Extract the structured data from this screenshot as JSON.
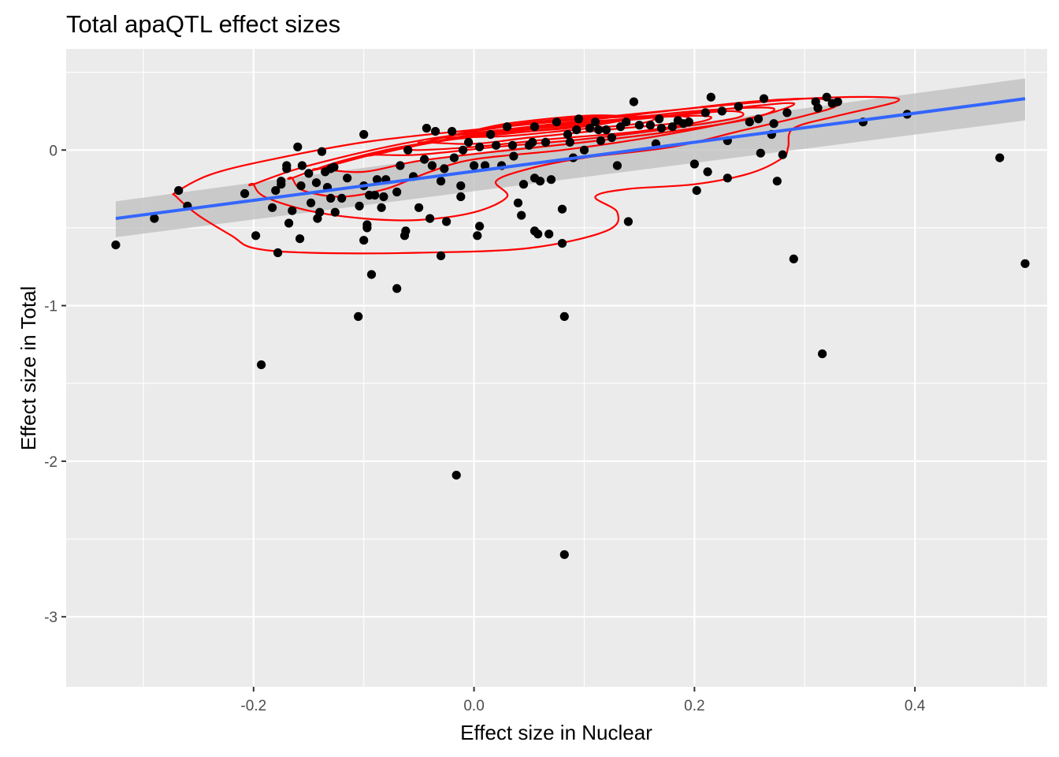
{
  "chart_data": {
    "type": "scatter",
    "title": "Total apaQTL effect sizes",
    "xlabel": "Effect size in Nuclear",
    "ylabel": "Effect size in Total",
    "xlim": [
      -0.37,
      0.52
    ],
    "ylim": [
      -3.45,
      0.65
    ],
    "x_ticks": [
      -0.2,
      0.0,
      0.2,
      0.4
    ],
    "x_tick_labels": [
      "-0.2",
      "0.0",
      "0.2",
      "0.4"
    ],
    "y_ticks": [
      -3,
      -2,
      -1,
      0
    ],
    "y_tick_labels": [
      "-3",
      "-2",
      "-1",
      "0"
    ],
    "grid": true,
    "colors": {
      "panel_background": "#ebebeb",
      "grid": "#ffffff",
      "points": "#000000",
      "regression_line": "#3366ff",
      "confidence_band": "#bdbdbd",
      "density_contours": "#ff0000"
    },
    "regression": {
      "x": [
        -0.325,
        0.5
      ],
      "y": [
        -0.44,
        0.33
      ],
      "se_low": [
        -0.56,
        0.19
      ],
      "se_high": [
        -0.33,
        0.46
      ]
    },
    "points": [
      [
        -0.325,
        -0.61
      ],
      [
        -0.29,
        -0.44
      ],
      [
        -0.268,
        -0.26
      ],
      [
        -0.26,
        -0.36
      ],
      [
        -0.208,
        -0.28
      ],
      [
        -0.198,
        -0.55
      ],
      [
        -0.193,
        -1.38
      ],
      [
        -0.183,
        -0.37
      ],
      [
        -0.18,
        -0.26
      ],
      [
        -0.178,
        -0.66
      ],
      [
        -0.175,
        -0.2
      ],
      [
        -0.175,
        -0.22
      ],
      [
        -0.17,
        -0.1
      ],
      [
        -0.17,
        -0.12
      ],
      [
        -0.168,
        -0.47
      ],
      [
        -0.165,
        -0.39
      ],
      [
        -0.16,
        0.02
      ],
      [
        -0.158,
        -0.57
      ],
      [
        -0.157,
        -0.23
      ],
      [
        -0.156,
        -0.1
      ],
      [
        -0.15,
        -0.15
      ],
      [
        -0.148,
        -0.34
      ],
      [
        -0.143,
        -0.21
      ],
      [
        -0.142,
        -0.44
      ],
      [
        -0.14,
        -0.4
      ],
      [
        -0.138,
        -0.01
      ],
      [
        -0.135,
        -0.14
      ],
      [
        -0.133,
        -0.24
      ],
      [
        -0.13,
        -0.31
      ],
      [
        -0.13,
        -0.12
      ],
      [
        -0.127,
        -0.11
      ],
      [
        -0.126,
        -0.4
      ],
      [
        -0.12,
        -0.31
      ],
      [
        -0.115,
        -0.18
      ],
      [
        -0.105,
        -1.07
      ],
      [
        -0.104,
        -0.36
      ],
      [
        -0.1,
        0.1
      ],
      [
        -0.1,
        -0.23
      ],
      [
        -0.1,
        -0.58
      ],
      [
        -0.097,
        -0.48
      ],
      [
        -0.097,
        -0.5
      ],
      [
        -0.095,
        -0.29
      ],
      [
        -0.093,
        -0.8
      ],
      [
        -0.09,
        -0.29
      ],
      [
        -0.088,
        -0.19
      ],
      [
        -0.084,
        -0.37
      ],
      [
        -0.082,
        -0.3
      ],
      [
        -0.08,
        -0.19
      ],
      [
        -0.07,
        -0.27
      ],
      [
        -0.07,
        -0.89
      ],
      [
        -0.067,
        -0.1
      ],
      [
        -0.063,
        -0.55
      ],
      [
        -0.062,
        -0.52
      ],
      [
        -0.06,
        0.0
      ],
      [
        -0.055,
        -0.17
      ],
      [
        -0.05,
        -0.37
      ],
      [
        -0.045,
        -0.06
      ],
      [
        -0.043,
        0.14
      ],
      [
        -0.04,
        -0.44
      ],
      [
        -0.038,
        -0.1
      ],
      [
        -0.035,
        0.12
      ],
      [
        -0.03,
        -0.68
      ],
      [
        -0.03,
        -0.2
      ],
      [
        -0.027,
        -0.12
      ],
      [
        -0.025,
        -0.46
      ],
      [
        -0.02,
        0.12
      ],
      [
        -0.018,
        -0.05
      ],
      [
        -0.016,
        -2.09
      ],
      [
        -0.012,
        -0.23
      ],
      [
        -0.012,
        -0.3
      ],
      [
        -0.01,
        0.0
      ],
      [
        -0.005,
        0.05
      ],
      [
        0.0,
        -0.1
      ],
      [
        0.003,
        -0.55
      ],
      [
        0.005,
        -0.49
      ],
      [
        0.005,
        0.02
      ],
      [
        0.01,
        -0.1
      ],
      [
        0.015,
        0.1
      ],
      [
        0.02,
        0.03
      ],
      [
        0.025,
        -0.1
      ],
      [
        0.03,
        0.15
      ],
      [
        0.035,
        0.03
      ],
      [
        0.036,
        -0.04
      ],
      [
        0.04,
        -0.34
      ],
      [
        0.043,
        -0.42
      ],
      [
        0.045,
        -0.22
      ],
      [
        0.05,
        0.03
      ],
      [
        0.053,
        0.05
      ],
      [
        0.055,
        0.15
      ],
      [
        0.055,
        -0.18
      ],
      [
        0.055,
        -0.52
      ],
      [
        0.058,
        -0.54
      ],
      [
        0.06,
        -0.2
      ],
      [
        0.065,
        0.05
      ],
      [
        0.068,
        -0.54
      ],
      [
        0.07,
        -0.19
      ],
      [
        0.075,
        0.18
      ],
      [
        0.08,
        -0.38
      ],
      [
        0.08,
        -0.6
      ],
      [
        0.082,
        -1.07
      ],
      [
        0.082,
        -2.6
      ],
      [
        0.085,
        0.1
      ],
      [
        0.087,
        0.05
      ],
      [
        0.09,
        -0.05
      ],
      [
        0.093,
        0.13
      ],
      [
        0.095,
        0.2
      ],
      [
        0.1,
        0.0
      ],
      [
        0.105,
        0.14
      ],
      [
        0.11,
        0.18
      ],
      [
        0.113,
        0.13
      ],
      [
        0.115,
        0.06
      ],
      [
        0.12,
        0.13
      ],
      [
        0.125,
        0.08
      ],
      [
        0.13,
        -0.1
      ],
      [
        0.133,
        0.15
      ],
      [
        0.138,
        0.18
      ],
      [
        0.14,
        -0.46
      ],
      [
        0.145,
        0.31
      ],
      [
        0.15,
        0.16
      ],
      [
        0.16,
        0.16
      ],
      [
        0.165,
        0.04
      ],
      [
        0.168,
        0.2
      ],
      [
        0.17,
        0.14
      ],
      [
        0.18,
        0.15
      ],
      [
        0.185,
        0.19
      ],
      [
        0.19,
        0.17
      ],
      [
        0.195,
        0.18
      ],
      [
        0.2,
        -0.09
      ],
      [
        0.202,
        -0.26
      ],
      [
        0.21,
        0.24
      ],
      [
        0.212,
        -0.14
      ],
      [
        0.215,
        0.34
      ],
      [
        0.225,
        0.25
      ],
      [
        0.23,
        0.06
      ],
      [
        0.23,
        -0.18
      ],
      [
        0.24,
        0.28
      ],
      [
        0.25,
        0.18
      ],
      [
        0.258,
        0.2
      ],
      [
        0.26,
        -0.02
      ],
      [
        0.263,
        0.33
      ],
      [
        0.27,
        0.1
      ],
      [
        0.272,
        0.17
      ],
      [
        0.275,
        -0.2
      ],
      [
        0.28,
        -0.03
      ],
      [
        0.284,
        0.24
      ],
      [
        0.29,
        -0.7
      ],
      [
        0.31,
        0.31
      ],
      [
        0.312,
        0.27
      ],
      [
        0.316,
        -1.31
      ],
      [
        0.32,
        0.34
      ],
      [
        0.325,
        0.3
      ],
      [
        0.33,
        0.31
      ],
      [
        0.353,
        0.18
      ],
      [
        0.393,
        0.23
      ],
      [
        0.477,
        -0.05
      ],
      [
        0.5,
        -0.73
      ]
    ],
    "contours": [
      [
        [
          -0.27,
          -0.27
        ],
        [
          -0.24,
          -0.16
        ],
        [
          -0.19,
          -0.07
        ],
        [
          -0.1,
          0.05
        ],
        [
          0.0,
          0.13
        ],
        [
          0.1,
          0.2
        ],
        [
          0.2,
          0.27
        ],
        [
          0.3,
          0.33
        ],
        [
          0.37,
          0.34
        ],
        [
          0.383,
          0.31
        ],
        [
          0.33,
          0.22
        ],
        [
          0.29,
          0.14
        ],
        [
          0.285,
          0.02
        ],
        [
          0.28,
          -0.05
        ],
        [
          0.25,
          -0.15
        ],
        [
          0.2,
          -0.22
        ],
        [
          0.14,
          -0.25
        ],
        [
          0.11,
          -0.3
        ],
        [
          0.13,
          -0.4
        ],
        [
          0.12,
          -0.52
        ],
        [
          0.05,
          -0.63
        ],
        [
          -0.05,
          -0.66
        ],
        [
          -0.15,
          -0.66
        ],
        [
          -0.2,
          -0.63
        ],
        [
          -0.22,
          -0.55
        ],
        [
          -0.25,
          -0.42
        ],
        [
          -0.27,
          -0.3
        ]
      ],
      [
        [
          -0.2,
          -0.22
        ],
        [
          -0.15,
          -0.1
        ],
        [
          -0.05,
          0.06
        ],
        [
          0.05,
          0.15
        ],
        [
          0.15,
          0.23
        ],
        [
          0.25,
          0.31
        ],
        [
          0.31,
          0.33
        ],
        [
          0.33,
          0.29
        ],
        [
          0.3,
          0.22
        ],
        [
          0.24,
          0.12
        ],
        [
          0.18,
          0.02
        ],
        [
          0.1,
          -0.05
        ],
        [
          0.05,
          -0.12
        ],
        [
          0.02,
          -0.2
        ],
        [
          0.03,
          -0.3
        ],
        [
          0.0,
          -0.4
        ],
        [
          -0.05,
          -0.45
        ],
        [
          -0.1,
          -0.44
        ],
        [
          -0.15,
          -0.39
        ],
        [
          -0.19,
          -0.3
        ],
        [
          -0.2,
          -0.22
        ]
      ],
      [
        [
          -0.165,
          -0.18
        ],
        [
          -0.12,
          -0.07
        ],
        [
          -0.05,
          0.04
        ],
        [
          0.05,
          0.12
        ],
        [
          0.15,
          0.2
        ],
        [
          0.25,
          0.28
        ],
        [
          0.29,
          0.3
        ],
        [
          0.27,
          0.24
        ],
        [
          0.22,
          0.16
        ],
        [
          0.15,
          0.07
        ],
        [
          0.08,
          0.0
        ],
        [
          0.0,
          -0.06
        ],
        [
          -0.04,
          -0.14
        ],
        [
          -0.08,
          -0.25
        ],
        [
          -0.12,
          -0.3
        ],
        [
          -0.155,
          -0.26
        ],
        [
          -0.165,
          -0.18
        ]
      ],
      [
        [
          -0.14,
          -0.12
        ],
        [
          -0.08,
          -0.01
        ],
        [
          0.0,
          0.09
        ],
        [
          0.1,
          0.17
        ],
        [
          0.2,
          0.25
        ],
        [
          0.27,
          0.27
        ],
        [
          0.25,
          0.2
        ],
        [
          0.18,
          0.12
        ],
        [
          0.1,
          0.05
        ],
        [
          0.02,
          -0.01
        ],
        [
          -0.05,
          -0.07
        ],
        [
          -0.1,
          -0.14
        ],
        [
          -0.14,
          -0.12
        ]
      ],
      [
        [
          -0.09,
          -0.03
        ],
        [
          -0.03,
          0.06
        ],
        [
          0.05,
          0.14
        ],
        [
          0.15,
          0.2
        ],
        [
          0.23,
          0.25
        ],
        [
          0.24,
          0.21
        ],
        [
          0.18,
          0.14
        ],
        [
          0.1,
          0.07
        ],
        [
          0.02,
          0.02
        ],
        [
          -0.05,
          -0.03
        ],
        [
          -0.09,
          -0.03
        ]
      ],
      [
        [
          -0.065,
          0.01
        ],
        [
          0.0,
          0.1
        ],
        [
          0.1,
          0.18
        ],
        [
          0.2,
          0.22
        ],
        [
          0.21,
          0.19
        ],
        [
          0.15,
          0.12
        ],
        [
          0.07,
          0.07
        ],
        [
          0.0,
          0.02
        ],
        [
          -0.05,
          0.0
        ],
        [
          -0.065,
          0.01
        ]
      ],
      [
        [
          -0.045,
          0.05
        ],
        [
          0.0,
          0.12
        ],
        [
          0.08,
          0.19
        ],
        [
          0.18,
          0.22
        ],
        [
          0.19,
          0.18
        ],
        [
          0.12,
          0.13
        ],
        [
          0.05,
          0.08
        ],
        [
          0.0,
          0.04
        ],
        [
          -0.045,
          0.05
        ]
      ],
      [
        [
          -0.03,
          0.08
        ],
        [
          0.02,
          0.15
        ],
        [
          0.1,
          0.21
        ],
        [
          0.16,
          0.21
        ],
        [
          0.15,
          0.17
        ],
        [
          0.09,
          0.13
        ],
        [
          0.03,
          0.09
        ],
        [
          -0.03,
          0.08
        ]
      ],
      [
        [
          -0.015,
          0.1
        ],
        [
          0.03,
          0.17
        ],
        [
          0.1,
          0.22
        ],
        [
          0.14,
          0.21
        ],
        [
          0.11,
          0.16
        ],
        [
          0.05,
          0.12
        ],
        [
          -0.015,
          0.1
        ]
      ]
    ]
  }
}
